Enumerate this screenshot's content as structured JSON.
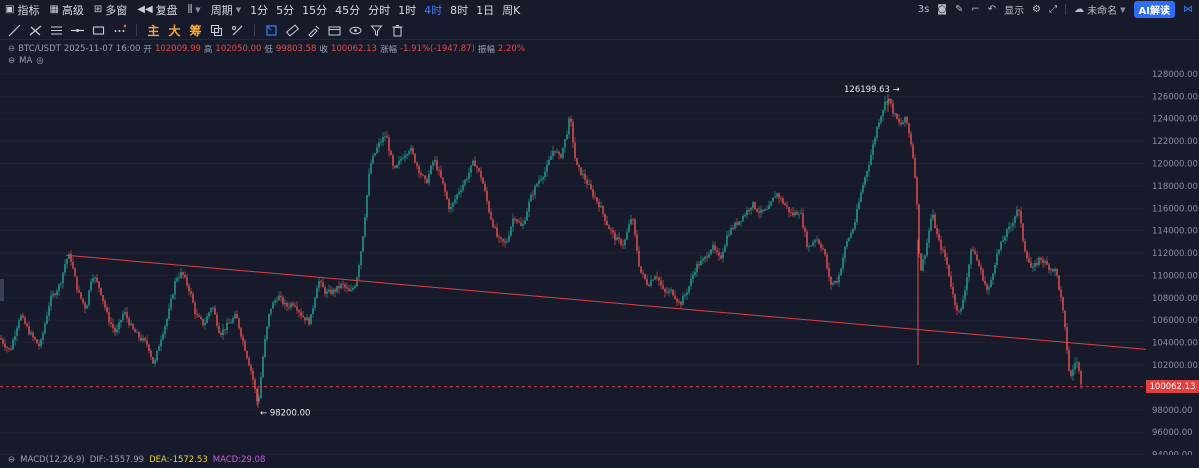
{
  "toolbar": {
    "indicator_label": "指标",
    "advanced_label": "高级",
    "multiwindow_label": "多窗",
    "replay_label": "复盘",
    "period_label": "周期",
    "periods": [
      "1分",
      "5分",
      "15分",
      "45分",
      "分时",
      "1时",
      "4时",
      "8时",
      "1日",
      "周K"
    ],
    "active_period": "4时"
  },
  "topright": {
    "interval": "3s",
    "display_label": "显示",
    "layout_name": "未命名",
    "ai_label": "AI解读"
  },
  "drawbar": {
    "main_label": "主",
    "big_label": "大",
    "chip_label": "筹"
  },
  "ohlc": {
    "symbol": "BTC/USDT",
    "datetime": "2025-11-07 16:00",
    "open_label": "开",
    "open": "102009.99",
    "high_label": "高",
    "high": "102050.00",
    "low_label": "低",
    "low": "99803.58",
    "close_label": "收",
    "close": "100062.13",
    "change_label": "涨幅",
    "change": "-1.91%(-1947.87)",
    "amplitude_label": "振幅",
    "amplitude": "2.20%"
  },
  "ma_label": "MA",
  "macd": {
    "name": "MACD(12,26,9)",
    "dif_label": "DIF:",
    "dif": "-1557.99",
    "dea_label": "DEA:",
    "dea": "-1572.53",
    "macd_label": "MACD:",
    "macd": "29.08"
  },
  "chart_data": {
    "type": "candlestick",
    "ylim": [
      92800,
      129600
    ],
    "y_ticks": [
      "128000.00",
      "126000.00",
      "124000.00",
      "122000.00",
      "120000.00",
      "118000.00",
      "116000.00",
      "114000.00",
      "112000.00",
      "110000.00",
      "108000.00",
      "106000.00",
      "104000.00",
      "102000.00",
      "100000.00",
      "98000.00",
      "96000.00",
      "94000.00"
    ],
    "y_tick_values": [
      128000,
      126000,
      124000,
      122000,
      120000,
      118000,
      116000,
      114000,
      112000,
      110000,
      108000,
      106000,
      104000,
      102000,
      100000,
      98000,
      96000,
      94000
    ],
    "high_annotation": "126199.63",
    "high_value": 126199.63,
    "low_annotation": "98200.00",
    "low_value": 98200.0,
    "last_price": "100062.13",
    "last_price_value": 100062.13,
    "up_color": "#26a69a",
    "down_color": "#ef5350",
    "trendline_color": "#e0413f",
    "price_path": [
      [
        0,
        104400
      ],
      [
        10,
        103200
      ],
      [
        20,
        106500
      ],
      [
        30,
        104800
      ],
      [
        40,
        103600
      ],
      [
        50,
        107800
      ],
      [
        60,
        109200
      ],
      [
        66,
        111400
      ],
      [
        70,
        111800
      ],
      [
        78,
        108500
      ],
      [
        86,
        107000
      ],
      [
        92,
        110200
      ],
      [
        100,
        108800
      ],
      [
        108,
        106200
      ],
      [
        116,
        104800
      ],
      [
        124,
        106800
      ],
      [
        132,
        105200
      ],
      [
        140,
        104400
      ],
      [
        148,
        103800
      ],
      [
        154,
        101900
      ],
      [
        160,
        104200
      ],
      [
        168,
        106400
      ],
      [
        176,
        109800
      ],
      [
        182,
        110200
      ],
      [
        190,
        108600
      ],
      [
        196,
        106400
      ],
      [
        204,
        105600
      ],
      [
        212,
        107400
      ],
      [
        220,
        104800
      ],
      [
        228,
        105600
      ],
      [
        236,
        106400
      ],
      [
        244,
        103800
      ],
      [
        252,
        101200
      ],
      [
        258,
        98300
      ],
      [
        264,
        103600
      ],
      [
        270,
        107000
      ],
      [
        278,
        108200
      ],
      [
        286,
        107200
      ],
      [
        294,
        107600
      ],
      [
        302,
        106400
      ],
      [
        310,
        105800
      ],
      [
        318,
        109600
      ],
      [
        326,
        108400
      ],
      [
        334,
        108600
      ],
      [
        342,
        109200
      ],
      [
        350,
        108400
      ],
      [
        356,
        109400
      ],
      [
        362,
        112800
      ],
      [
        370,
        119800
      ],
      [
        378,
        121600
      ],
      [
        386,
        122600
      ],
      [
        394,
        119200
      ],
      [
        402,
        120600
      ],
      [
        410,
        121400
      ],
      [
        418,
        119600
      ],
      [
        426,
        118200
      ],
      [
        434,
        120400
      ],
      [
        442,
        118400
      ],
      [
        450,
        115800
      ],
      [
        458,
        117400
      ],
      [
        466,
        118600
      ],
      [
        474,
        120200
      ],
      [
        482,
        118600
      ],
      [
        490,
        115400
      ],
      [
        498,
        113200
      ],
      [
        506,
        112800
      ],
      [
        514,
        115400
      ],
      [
        522,
        114200
      ],
      [
        530,
        116800
      ],
      [
        538,
        118400
      ],
      [
        546,
        119400
      ],
      [
        554,
        121400
      ],
      [
        560,
        120400
      ],
      [
        566,
        122400
      ],
      [
        570,
        124200
      ],
      [
        576,
        119800
      ],
      [
        584,
        118800
      ],
      [
        592,
        117400
      ],
      [
        600,
        116200
      ],
      [
        608,
        114400
      ],
      [
        616,
        113200
      ],
      [
        624,
        112800
      ],
      [
        632,
        115400
      ],
      [
        640,
        110400
      ],
      [
        648,
        109200
      ],
      [
        656,
        110200
      ],
      [
        664,
        108400
      ],
      [
        672,
        108600
      ],
      [
        680,
        107400
      ],
      [
        688,
        108800
      ],
      [
        696,
        110800
      ],
      [
        704,
        111400
      ],
      [
        712,
        112600
      ],
      [
        720,
        111400
      ],
      [
        728,
        113800
      ],
      [
        736,
        114600
      ],
      [
        744,
        115400
      ],
      [
        752,
        116400
      ],
      [
        760,
        115600
      ],
      [
        768,
        115800
      ],
      [
        776,
        117400
      ],
      [
        784,
        116400
      ],
      [
        792,
        115400
      ],
      [
        800,
        115800
      ],
      [
        808,
        112400
      ],
      [
        816,
        113400
      ],
      [
        824,
        112200
      ],
      [
        830,
        109200
      ],
      [
        838,
        109600
      ],
      [
        846,
        112800
      ],
      [
        854,
        114400
      ],
      [
        862,
        117800
      ],
      [
        870,
        120400
      ],
      [
        878,
        123600
      ],
      [
        884,
        125200
      ],
      [
        888,
        126000
      ],
      [
        894,
        124400
      ],
      [
        900,
        123400
      ],
      [
        906,
        124000
      ],
      [
        912,
        121400
      ],
      [
        916,
        118200
      ],
      [
        920,
        110200
      ],
      [
        926,
        112400
      ],
      [
        932,
        115600
      ],
      [
        938,
        113200
      ],
      [
        946,
        111400
      ],
      [
        954,
        107800
      ],
      [
        960,
        106400
      ],
      [
        966,
        109400
      ],
      [
        972,
        112600
      ],
      [
        980,
        110600
      ],
      [
        988,
        108400
      ],
      [
        996,
        111600
      ],
      [
        1004,
        113400
      ],
      [
        1012,
        114600
      ],
      [
        1018,
        116200
      ],
      [
        1024,
        112600
      ],
      [
        1032,
        110400
      ],
      [
        1040,
        111600
      ],
      [
        1048,
        110800
      ],
      [
        1056,
        110400
      ],
      [
        1062,
        107400
      ],
      [
        1066,
        104400
      ],
      [
        1070,
        100600
      ],
      [
        1076,
        102600
      ],
      [
        1082,
        100100
      ]
    ],
    "trendline": {
      "start": [
        66,
        111800
      ],
      "end": [
        1146,
        103400
      ]
    },
    "spike_candle": {
      "x": 918,
      "high": 113200,
      "low": 102000
    }
  }
}
